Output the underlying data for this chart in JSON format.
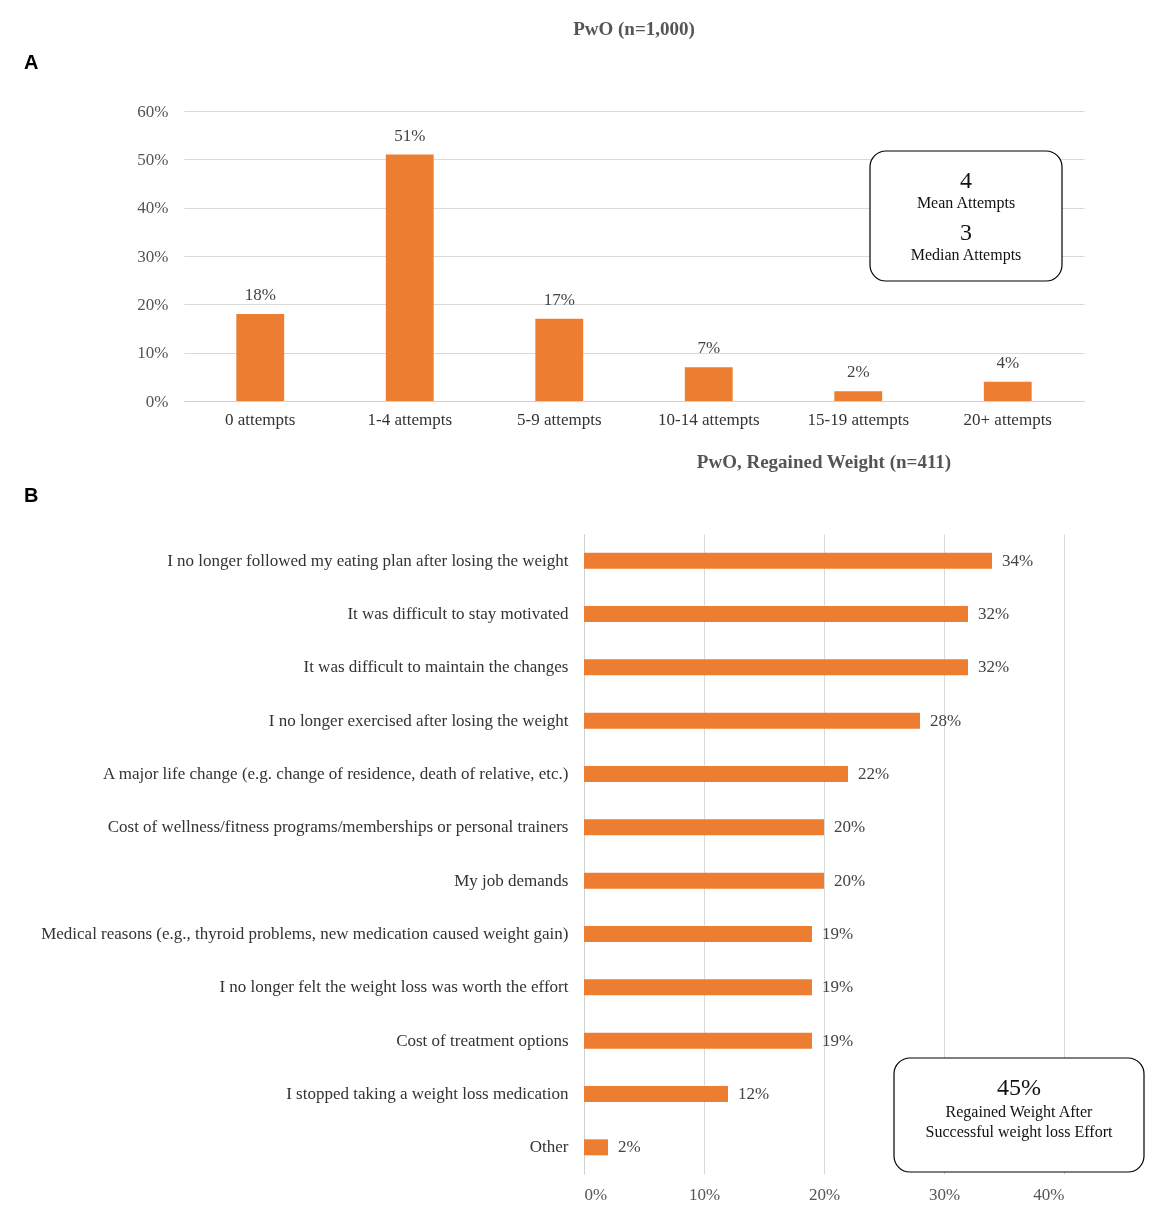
{
  "chart_data": [
    {
      "type": "bar",
      "title": "PwO (n=1,000)",
      "categories": [
        "0 attempts",
        "1-4 attempts",
        "5-9 attempts",
        "10-14 attempts",
        "15-19 attempts",
        "20+ attempts"
      ],
      "values": [
        18,
        51,
        17,
        7,
        2,
        4
      ],
      "value_labels": [
        "18%",
        "51%",
        "17%",
        "7%",
        "2%",
        "4%"
      ],
      "color": "#ed7d31",
      "ylim": [
        0,
        60
      ],
      "yticks": [
        {
          "value": 0,
          "label": "0%"
        },
        {
          "value": 10,
          "label": "10%"
        },
        {
          "value": 20,
          "label": "20%"
        },
        {
          "value": 30,
          "label": "30%"
        },
        {
          "value": 40,
          "label": "40%"
        },
        {
          "value": 50,
          "label": "50%"
        },
        {
          "value": 60,
          "label": "60%"
        }
      ],
      "grid": "y",
      "annotations": [
        "A",
        "4",
        "Mean Attempts",
        "3",
        "Median Attempts"
      ]
    },
    {
      "type": "bar",
      "orientation": "horizontal",
      "title": "PwO, Regained Weight (n=411)",
      "categories": [
        "I no longer followed my eating plan after losing the weight",
        "It was difficult to stay motivated",
        "It was difficult to maintain the changes",
        "I no longer exercised after losing the weight",
        "A major life change (e.g. change of residence, death of relative, etc.)",
        "Cost of wellness/fitness programs/memberships or personal trainers",
        "My job demands",
        "Medical reasons (e.g., thyroid problems, new medication caused weight gain)",
        "I no longer felt the weight loss was worth the effort",
        "Cost of treatment options",
        "I stopped taking a weight loss medication",
        "Other"
      ],
      "values": [
        34,
        32,
        32,
        28,
        22,
        20,
        20,
        19,
        19,
        19,
        12,
        2
      ],
      "value_labels": [
        "34%",
        "32%",
        "32%",
        "28%",
        "22%",
        "20%",
        "20%",
        "19%",
        "19%",
        "19%",
        "12%",
        "2%"
      ],
      "color": "#ed7d31",
      "xlim": [
        0,
        40
      ],
      "xticks": [
        {
          "value": 0,
          "label": "0%"
        },
        {
          "value": 10,
          "label": "10%"
        },
        {
          "value": 20,
          "label": "20%"
        },
        {
          "value": 30,
          "label": "30%"
        },
        {
          "value": 40,
          "label": "40%"
        }
      ],
      "grid": "x",
      "annotations": [
        "B",
        "45%",
        "Regained Weight After",
        "Successful weight loss Effort"
      ]
    }
  ]
}
